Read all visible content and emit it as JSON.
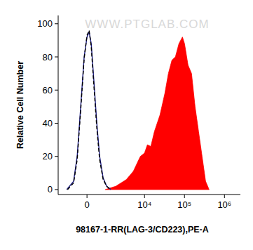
{
  "chart_data": {
    "type": "area",
    "x_label": "98167-1-RR(LAG-3/CD223),PE-A",
    "y_label": "Relative Cell Number",
    "annotations": [
      "WWW.PTGLAB.COM"
    ],
    "xlim": [
      -1850,
      2500000
    ],
    "ylim": [
      -3,
      105
    ],
    "xticks": [
      0,
      {
        "value": 10000,
        "label": "10⁴"
      },
      {
        "value": 100000,
        "label": "10⁵"
      },
      {
        "value": 1000000,
        "label": "10⁶"
      }
    ],
    "yticks": [
      0,
      20,
      40,
      60,
      80,
      100
    ],
    "grid": false,
    "series": [
      {
        "type": "area",
        "color": "#ff0000",
        "x": [
          920,
          1850,
          3470,
          5230,
          7860,
          10000,
          11800,
          14400,
          17700,
          24400,
          32300,
          39600,
          48500,
          59300,
          72600,
          88900,
          100300,
          122700,
          150200,
          183800,
          224900,
          275300,
          336900,
          412400
        ],
        "values": [
          0,
          2,
          6,
          11,
          20,
          22,
          27,
          26,
          35,
          45,
          58,
          70,
          78,
          80,
          88,
          92,
          88,
          75,
          70,
          50,
          35,
          20,
          5,
          0
        ]
      },
      {
        "type": "line",
        "color": "#1a1a80",
        "line_style": "solid",
        "x": [
          -1060,
          -620,
          -435,
          -270,
          -120,
          0,
          90,
          180,
          300,
          435,
          580,
          780,
          1015,
          1350
        ],
        "values": [
          0,
          5,
          20,
          50,
          80,
          92,
          95,
          88,
          65,
          40,
          20,
          7,
          2,
          0
        ]
      },
      {
        "type": "line",
        "color": "#000000",
        "line_style": "dashed",
        "x": [
          -1000,
          -620,
          -435,
          -270,
          -120,
          0,
          90,
          180,
          300,
          435,
          580,
          780,
          1015,
          1300
        ],
        "values": [
          0,
          4,
          18,
          48,
          79,
          93,
          96,
          86,
          62,
          37,
          18,
          6,
          2,
          0
        ]
      }
    ]
  }
}
